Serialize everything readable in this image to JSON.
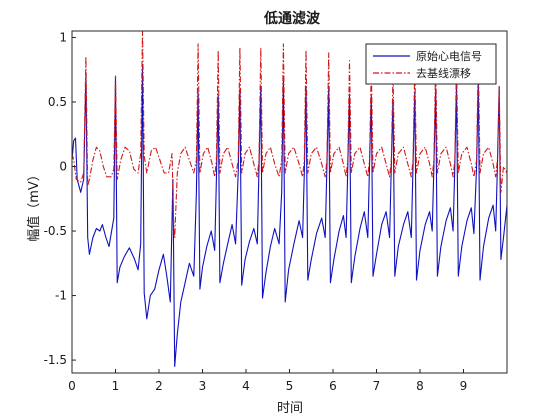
{
  "chart_data": {
    "type": "line",
    "title": "低通滤波",
    "xlabel": "时间",
    "ylabel": "幅值（mV）",
    "xlim": [
      0,
      10
    ],
    "ylim": [
      -1.6,
      1.05
    ],
    "x_ticks": [
      "0",
      "1",
      "2",
      "3",
      "4",
      "5",
      "6",
      "7",
      "8",
      "9"
    ],
    "y_ticks": [
      "-1.5",
      "-1",
      "-0.5",
      "0",
      "0.5",
      "1"
    ],
    "grid": false,
    "legend_position": "top-right",
    "series": [
      {
        "name": "原始心电信号",
        "color": "#1010c0",
        "style": "solid",
        "points": [
          [
            0.0,
            0.05
          ],
          [
            0.04,
            0.2
          ],
          [
            0.08,
            0.22
          ],
          [
            0.12,
            -0.1
          ],
          [
            0.2,
            -0.2
          ],
          [
            0.27,
            -0.1
          ],
          [
            0.32,
            0.7
          ],
          [
            0.36,
            -0.55
          ],
          [
            0.4,
            -0.68
          ],
          [
            0.48,
            -0.55
          ],
          [
            0.56,
            -0.48
          ],
          [
            0.64,
            -0.5
          ],
          [
            0.7,
            -0.45
          ],
          [
            0.78,
            -0.55
          ],
          [
            0.85,
            -0.62
          ],
          [
            0.96,
            -0.4
          ],
          [
            1.0,
            0.7
          ],
          [
            1.04,
            -0.9
          ],
          [
            1.1,
            -0.78
          ],
          [
            1.2,
            -0.7
          ],
          [
            1.32,
            -0.63
          ],
          [
            1.44,
            -0.72
          ],
          [
            1.52,
            -0.8
          ],
          [
            1.58,
            -0.6
          ],
          [
            1.62,
            0.78
          ],
          [
            1.66,
            -0.98
          ],
          [
            1.72,
            -1.18
          ],
          [
            1.8,
            -1.0
          ],
          [
            1.9,
            -0.95
          ],
          [
            2.0,
            -0.8
          ],
          [
            2.1,
            -0.68
          ],
          [
            2.18,
            -0.85
          ],
          [
            2.26,
            -1.05
          ],
          [
            2.32,
            -0.1
          ],
          [
            2.36,
            -1.55
          ],
          [
            2.42,
            -1.3
          ],
          [
            2.5,
            -1.05
          ],
          [
            2.6,
            -0.9
          ],
          [
            2.7,
            -0.75
          ],
          [
            2.8,
            -0.85
          ],
          [
            2.86,
            -0.2
          ],
          [
            2.9,
            0.57
          ],
          [
            2.94,
            -0.95
          ],
          [
            3.0,
            -0.78
          ],
          [
            3.1,
            -0.62
          ],
          [
            3.2,
            -0.5
          ],
          [
            3.28,
            -0.65
          ],
          [
            3.32,
            -0.1
          ],
          [
            3.36,
            0.55
          ],
          [
            3.4,
            -0.9
          ],
          [
            3.48,
            -0.75
          ],
          [
            3.58,
            -0.6
          ],
          [
            3.68,
            -0.45
          ],
          [
            3.76,
            -0.6
          ],
          [
            3.82,
            -0.05
          ],
          [
            3.86,
            0.6
          ],
          [
            3.9,
            -0.92
          ],
          [
            3.98,
            -0.72
          ],
          [
            4.08,
            -0.58
          ],
          [
            4.18,
            -0.48
          ],
          [
            4.26,
            -0.6
          ],
          [
            4.3,
            0.0
          ],
          [
            4.34,
            0.62
          ],
          [
            4.38,
            -1.02
          ],
          [
            4.46,
            -0.82
          ],
          [
            4.56,
            -0.62
          ],
          [
            4.66,
            -0.48
          ],
          [
            4.76,
            -0.6
          ],
          [
            4.82,
            -0.2
          ],
          [
            4.86,
            0.68
          ],
          [
            4.9,
            -1.05
          ],
          [
            4.98,
            -0.8
          ],
          [
            5.1,
            -0.6
          ],
          [
            5.22,
            -0.42
          ],
          [
            5.3,
            -0.55
          ],
          [
            5.34,
            -0.05
          ],
          [
            5.38,
            0.62
          ],
          [
            5.42,
            -0.88
          ],
          [
            5.5,
            -0.72
          ],
          [
            5.62,
            -0.52
          ],
          [
            5.74,
            -0.4
          ],
          [
            5.82,
            -0.55
          ],
          [
            5.86,
            0.0
          ],
          [
            5.9,
            0.6
          ],
          [
            5.94,
            -0.9
          ],
          [
            6.02,
            -0.72
          ],
          [
            6.14,
            -0.5
          ],
          [
            6.24,
            -0.38
          ],
          [
            6.3,
            -0.55
          ],
          [
            6.34,
            0.0
          ],
          [
            6.38,
            0.56
          ],
          [
            6.42,
            -0.9
          ],
          [
            6.5,
            -0.7
          ],
          [
            6.62,
            -0.48
          ],
          [
            6.72,
            -0.35
          ],
          [
            6.8,
            -0.55
          ],
          [
            6.84,
            0.0
          ],
          [
            6.88,
            0.55
          ],
          [
            6.92,
            -0.85
          ],
          [
            7.0,
            -0.68
          ],
          [
            7.12,
            -0.45
          ],
          [
            7.22,
            -0.35
          ],
          [
            7.3,
            -0.55
          ],
          [
            7.34,
            0.0
          ],
          [
            7.38,
            0.52
          ],
          [
            7.42,
            -0.85
          ],
          [
            7.5,
            -0.62
          ],
          [
            7.62,
            -0.45
          ],
          [
            7.72,
            -0.35
          ],
          [
            7.8,
            -0.55
          ],
          [
            7.84,
            0.0
          ],
          [
            7.88,
            0.58
          ],
          [
            7.92,
            -0.88
          ],
          [
            8.0,
            -0.65
          ],
          [
            8.12,
            -0.45
          ],
          [
            8.22,
            -0.35
          ],
          [
            8.28,
            -0.5
          ],
          [
            8.32,
            0.0
          ],
          [
            8.36,
            0.6
          ],
          [
            8.4,
            -0.85
          ],
          [
            8.48,
            -0.62
          ],
          [
            8.6,
            -0.42
          ],
          [
            8.7,
            -0.32
          ],
          [
            8.76,
            -0.5
          ],
          [
            8.8,
            0.0
          ],
          [
            8.84,
            0.62
          ],
          [
            8.88,
            -0.85
          ],
          [
            8.96,
            -0.62
          ],
          [
            9.08,
            -0.42
          ],
          [
            9.18,
            -0.32
          ],
          [
            9.24,
            -0.52
          ],
          [
            9.3,
            0.0
          ],
          [
            9.34,
            0.66
          ],
          [
            9.38,
            -0.88
          ],
          [
            9.46,
            -0.62
          ],
          [
            9.58,
            -0.4
          ],
          [
            9.68,
            -0.3
          ],
          [
            9.74,
            -0.5
          ],
          [
            9.78,
            0.0
          ],
          [
            9.82,
            0.62
          ],
          [
            9.86,
            -0.72
          ],
          [
            9.92,
            -0.55
          ],
          [
            10.0,
            -0.3
          ]
        ]
      },
      {
        "name": "去基线漂移",
        "color": "#d01818",
        "style": "dashdot",
        "points": [
          [
            0.0,
            0.1
          ],
          [
            0.04,
            0.05
          ],
          [
            0.1,
            -0.1
          ],
          [
            0.2,
            -0.12
          ],
          [
            0.27,
            -0.05
          ],
          [
            0.32,
            0.85
          ],
          [
            0.36,
            -0.15
          ],
          [
            0.4,
            -0.1
          ],
          [
            0.48,
            0.05
          ],
          [
            0.56,
            0.15
          ],
          [
            0.64,
            0.12
          ],
          [
            0.72,
            0.0
          ],
          [
            0.8,
            -0.08
          ],
          [
            0.9,
            -0.08
          ],
          [
            0.96,
            -0.02
          ],
          [
            1.0,
            0.7
          ],
          [
            1.04,
            -0.1
          ],
          [
            1.12,
            0.05
          ],
          [
            1.22,
            0.15
          ],
          [
            1.32,
            0.12
          ],
          [
            1.42,
            -0.02
          ],
          [
            1.52,
            -0.05
          ],
          [
            1.58,
            0.1
          ],
          [
            1.62,
            1.05
          ],
          [
            1.66,
            0.08
          ],
          [
            1.72,
            -0.05
          ],
          [
            1.82,
            0.12
          ],
          [
            1.92,
            0.15
          ],
          [
            2.02,
            0.05
          ],
          [
            2.12,
            -0.05
          ],
          [
            2.22,
            -0.05
          ],
          [
            2.3,
            0.1
          ],
          [
            2.33,
            -0.4
          ],
          [
            2.36,
            -0.55
          ],
          [
            2.42,
            -0.05
          ],
          [
            2.5,
            0.1
          ],
          [
            2.6,
            0.15
          ],
          [
            2.7,
            0.05
          ],
          [
            2.8,
            -0.05
          ],
          [
            2.86,
            0.05
          ],
          [
            2.9,
            0.95
          ],
          [
            2.94,
            -0.05
          ],
          [
            3.02,
            0.1
          ],
          [
            3.12,
            0.15
          ],
          [
            3.22,
            0.02
          ],
          [
            3.28,
            -0.08
          ],
          [
            3.32,
            0.05
          ],
          [
            3.36,
            0.9
          ],
          [
            3.4,
            -0.05
          ],
          [
            3.48,
            0.1
          ],
          [
            3.58,
            0.15
          ],
          [
            3.68,
            0.02
          ],
          [
            3.76,
            -0.08
          ],
          [
            3.82,
            0.05
          ],
          [
            3.86,
            0.92
          ],
          [
            3.9,
            -0.05
          ],
          [
            3.98,
            0.1
          ],
          [
            4.08,
            0.15
          ],
          [
            4.18,
            0.02
          ],
          [
            4.26,
            -0.08
          ],
          [
            4.3,
            0.05
          ],
          [
            4.34,
            0.92
          ],
          [
            4.38,
            -0.05
          ],
          [
            4.46,
            0.1
          ],
          [
            4.56,
            0.15
          ],
          [
            4.66,
            0.02
          ],
          [
            4.76,
            -0.08
          ],
          [
            4.82,
            0.05
          ],
          [
            4.86,
            0.95
          ],
          [
            4.9,
            -0.05
          ],
          [
            4.98,
            0.1
          ],
          [
            5.1,
            0.15
          ],
          [
            5.22,
            0.02
          ],
          [
            5.3,
            -0.08
          ],
          [
            5.34,
            0.05
          ],
          [
            5.38,
            0.9
          ],
          [
            5.42,
            -0.05
          ],
          [
            5.5,
            0.1
          ],
          [
            5.62,
            0.15
          ],
          [
            5.74,
            0.02
          ],
          [
            5.82,
            -0.08
          ],
          [
            5.86,
            0.05
          ],
          [
            5.9,
            0.88
          ],
          [
            5.94,
            -0.05
          ],
          [
            6.02,
            0.1
          ],
          [
            6.14,
            0.15
          ],
          [
            6.24,
            0.02
          ],
          [
            6.3,
            -0.08
          ],
          [
            6.34,
            0.05
          ],
          [
            6.38,
            0.82
          ],
          [
            6.42,
            -0.05
          ],
          [
            6.5,
            0.1
          ],
          [
            6.62,
            0.15
          ],
          [
            6.72,
            0.02
          ],
          [
            6.8,
            -0.08
          ],
          [
            6.84,
            0.05
          ],
          [
            6.88,
            0.78
          ],
          [
            6.92,
            -0.05
          ],
          [
            7.0,
            0.1
          ],
          [
            7.12,
            0.15
          ],
          [
            7.22,
            0.02
          ],
          [
            7.3,
            -0.08
          ],
          [
            7.34,
            0.05
          ],
          [
            7.38,
            0.72
          ],
          [
            7.42,
            -0.05
          ],
          [
            7.5,
            0.1
          ],
          [
            7.62,
            0.15
          ],
          [
            7.72,
            0.02
          ],
          [
            7.8,
            -0.08
          ],
          [
            7.84,
            0.05
          ],
          [
            7.88,
            0.78
          ],
          [
            7.92,
            -0.05
          ],
          [
            8.0,
            0.1
          ],
          [
            8.12,
            0.15
          ],
          [
            8.22,
            0.02
          ],
          [
            8.28,
            -0.08
          ],
          [
            8.32,
            0.05
          ],
          [
            8.36,
            0.82
          ],
          [
            8.4,
            -0.05
          ],
          [
            8.48,
            0.1
          ],
          [
            8.6,
            0.15
          ],
          [
            8.7,
            0.02
          ],
          [
            8.76,
            -0.08
          ],
          [
            8.8,
            0.05
          ],
          [
            8.84,
            0.8
          ],
          [
            8.88,
            -0.05
          ],
          [
            8.96,
            0.1
          ],
          [
            9.08,
            0.15
          ],
          [
            9.18,
            0.02
          ],
          [
            9.24,
            -0.08
          ],
          [
            9.3,
            0.05
          ],
          [
            9.34,
            0.88
          ],
          [
            9.38,
            -0.05
          ],
          [
            9.46,
            0.1
          ],
          [
            9.58,
            0.15
          ],
          [
            9.68,
            0.02
          ],
          [
            9.74,
            -0.08
          ],
          [
            9.78,
            0.05
          ],
          [
            9.82,
            0.62
          ],
          [
            9.86,
            -0.2
          ],
          [
            9.92,
            0.0
          ],
          [
            10.0,
            -0.05
          ]
        ]
      }
    ]
  }
}
